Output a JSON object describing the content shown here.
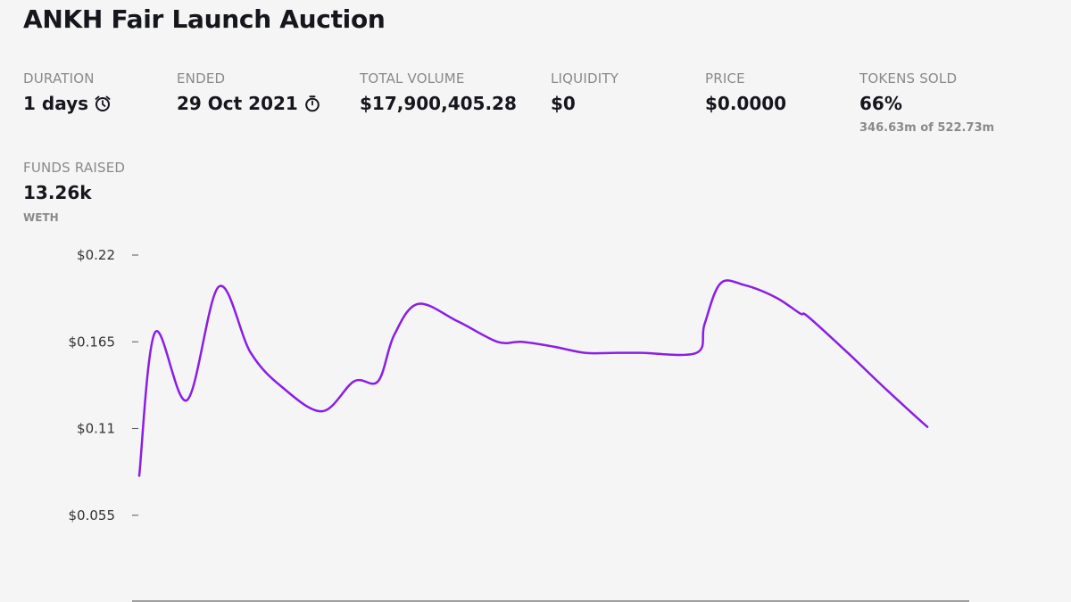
{
  "title": "ANKH Fair Launch Auction",
  "stats": {
    "duration": {
      "label": "DURATION",
      "value": "1 days"
    },
    "ended": {
      "label": "ENDED",
      "value": "29 Oct 2021"
    },
    "total_volume": {
      "label": "TOTAL VOLUME",
      "value": "$17,900,405.28"
    },
    "liquidity": {
      "label": "LIQUIDITY",
      "value": "$0"
    },
    "price": {
      "label": "PRICE",
      "value": "$0.0000"
    },
    "tokens_sold": {
      "label": "TOKENS SOLD",
      "value": "66%",
      "sub": "346.63m of 522.73m"
    },
    "funds_raised": {
      "label": "FUNDS RAISED",
      "value": "13.26k",
      "sub": "WETH"
    }
  },
  "colors": {
    "line": "#8a1ee6",
    "text": "#16161d",
    "muted": "#8a8a8a",
    "background": "#f5f5f5"
  },
  "icons": {
    "duration": "alarm-clock-icon",
    "ended": "stopwatch-icon"
  },
  "chart_data": {
    "type": "line",
    "title": "",
    "xlabel": "",
    "ylabel": "",
    "yticks": [
      {
        "value": 0.22,
        "label": "$0.22"
      },
      {
        "value": 0.165,
        "label": "$0.165"
      },
      {
        "value": 0.11,
        "label": "$0.11"
      },
      {
        "value": 0.055,
        "label": "$0.055"
      }
    ],
    "ylim": [
      0.0,
      0.22
    ],
    "xlim": [
      0,
      100
    ],
    "grid": false,
    "series": [
      {
        "name": "Price",
        "x": [
          0,
          2,
          6,
          10,
          14,
          18,
          23,
          27,
          30,
          32,
          35,
          40,
          45,
          48,
          52,
          56,
          60,
          63,
          70,
          71,
          73,
          76,
          80,
          83,
          84,
          89,
          94,
          99
        ],
        "y": [
          0.08,
          0.171,
          0.128,
          0.2,
          0.158,
          0.136,
          0.121,
          0.14,
          0.14,
          0.169,
          0.189,
          0.178,
          0.165,
          0.165,
          0.162,
          0.158,
          0.158,
          0.158,
          0.158,
          0.176,
          0.202,
          0.201,
          0.193,
          0.183,
          0.181,
          0.158,
          0.134,
          0.111
        ]
      }
    ]
  }
}
